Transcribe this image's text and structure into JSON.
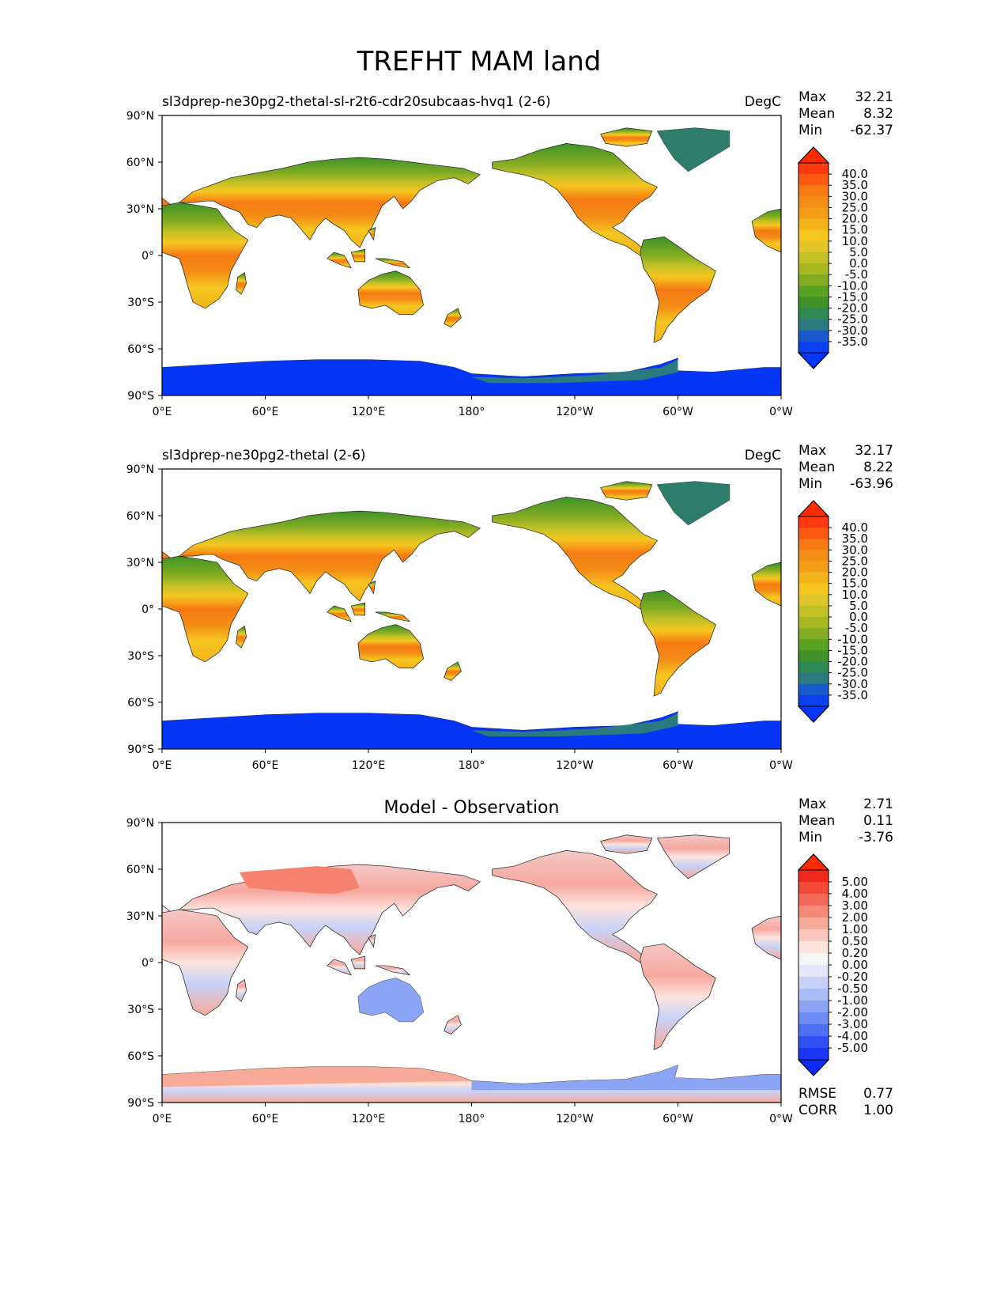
{
  "figure": {
    "title": "TREFHT MAM land",
    "colors": {
      "ocean": "#ffffff",
      "antarctica": "#0536f5",
      "greenland": "#2e7d6b",
      "coast": "#222222"
    }
  },
  "axes": {
    "lat_ticks": [
      "90°N",
      "60°N",
      "30°N",
      "0°",
      "30°S",
      "60°S",
      "90°S"
    ],
    "lon_ticks": [
      "0°E",
      "60°E",
      "120°E",
      "180°",
      "120°W",
      "60°W",
      "0°W"
    ]
  },
  "panels": [
    {
      "title_left": "sl3dprep-ne30pg2-thetal-sl-r2t6-cdr20subcaas-hvq1 (2-6)",
      "title_center": "",
      "units": "DegC",
      "stats": [
        {
          "label": "Max",
          "value": "32.21"
        },
        {
          "label": "Mean",
          "value": "8.32"
        },
        {
          "label": "Min",
          "value": "-62.37"
        }
      ],
      "colorbar": {
        "labels": [
          "40.0",
          "35.0",
          "30.0",
          "25.0",
          "20.0",
          "15.0",
          "10.0",
          "5.0",
          "0.0",
          "-5.0",
          "-10.0",
          "-15.0",
          "-20.0",
          "-25.0",
          "-30.0",
          "-35.0"
        ],
        "colors": [
          "#ff3a10",
          "#fb5a12",
          "#f77a14",
          "#f38e16",
          "#f3a018",
          "#f4b41c",
          "#f5c620",
          "#e0c62a",
          "#c4c126",
          "#a8b822",
          "#84ac22",
          "#5aa222",
          "#3e9228",
          "#2e8a55",
          "#2a7a80",
          "#1a5acc",
          "#0a40f0"
        ],
        "top_color": "#ff2a00",
        "bottom_color": "#0536ff"
      }
    },
    {
      "title_left": "sl3dprep-ne30pg2-thetal (2-6)",
      "title_center": "",
      "units": "DegC",
      "stats": [
        {
          "label": "Max",
          "value": "32.17"
        },
        {
          "label": "Mean",
          "value": "8.22"
        },
        {
          "label": "Min",
          "value": "-63.96"
        }
      ],
      "colorbar": {
        "labels": [
          "40.0",
          "35.0",
          "30.0",
          "25.0",
          "20.0",
          "15.0",
          "10.0",
          "5.0",
          "0.0",
          "-5.0",
          "-10.0",
          "-15.0",
          "-20.0",
          "-25.0",
          "-30.0",
          "-35.0"
        ],
        "colors": [
          "#ff3a10",
          "#fb5a12",
          "#f77a14",
          "#f38e16",
          "#f3a018",
          "#f4b41c",
          "#f5c620",
          "#e0c62a",
          "#c4c126",
          "#a8b822",
          "#84ac22",
          "#5aa222",
          "#3e9228",
          "#2e8a55",
          "#2a7a80",
          "#1a5acc",
          "#0a40f0"
        ],
        "top_color": "#ff2a00",
        "bottom_color": "#0536ff"
      }
    },
    {
      "title_left": "",
      "title_center": "Model - Observation",
      "units": "",
      "stats": [
        {
          "label": "Max",
          "value": "2.71"
        },
        {
          "label": "Mean",
          "value": "0.11"
        },
        {
          "label": "Min",
          "value": "-3.76"
        }
      ],
      "extra_stats": [
        {
          "label": "RMSE",
          "value": "0.77"
        },
        {
          "label": "CORR",
          "value": "1.00"
        }
      ],
      "colorbar": {
        "labels": [
          "5.00",
          "4.00",
          "3.00",
          "2.00",
          "1.00",
          "0.50",
          "0.20",
          "0.00",
          "-0.20",
          "-0.50",
          "-1.00",
          "-2.00",
          "-3.00",
          "-4.00",
          "-5.00"
        ],
        "colors": [
          "#f02a1a",
          "#f24a38",
          "#f46a58",
          "#f68a78",
          "#f8aa98",
          "#fac8bc",
          "#fde4dc",
          "#f6f6f6",
          "#e4e8fa",
          "#c8d2f8",
          "#aabcf6",
          "#8ca4f4",
          "#6e8cf4",
          "#5070f4",
          "#3050f6",
          "#1a36f8"
        ],
        "top_color": "#ff2a00",
        "bottom_color": "#0a2af8"
      }
    }
  ]
}
